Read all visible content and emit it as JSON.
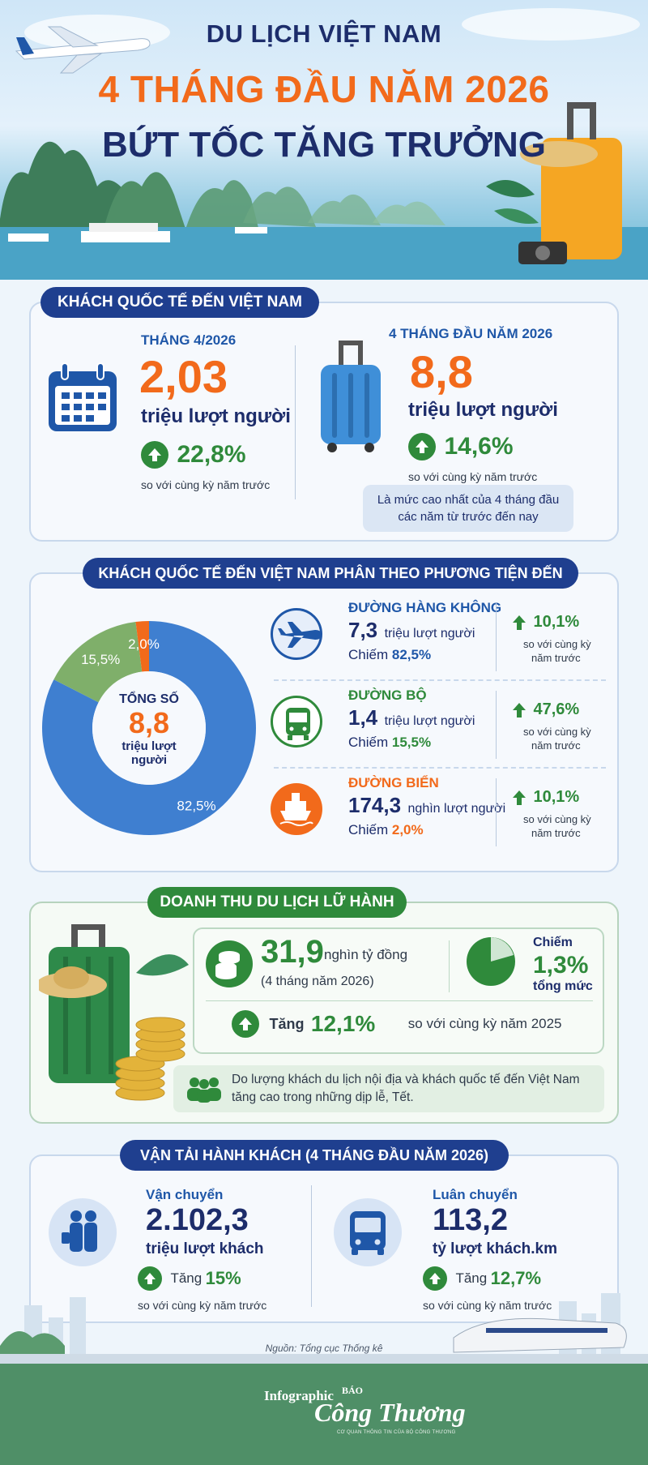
{
  "header": {
    "line1": "DU LỊCH VIỆT NAM",
    "line2": "4 THÁNG ĐẦU NĂM 2026",
    "line3": "BỨT TỐC TĂNG TRƯỞNG"
  },
  "intl": {
    "badge": "KHÁCH QUỐC TẾ ĐẾN VIỆT NAM",
    "left": {
      "period": "THÁNG 4/2026",
      "value": "2,03",
      "unit": "triệu lượt người",
      "growth": "22,8%",
      "note": "so với cùng kỳ năm trước"
    },
    "right": {
      "period": "4 THÁNG ĐẦU NĂM 2026",
      "value": "8,8",
      "unit": "triệu lượt người",
      "growth": "14,6%",
      "note": "so với cùng kỳ năm trước",
      "callout": "Là mức cao nhất của 4 tháng đầu các năm từ trước đến nay"
    }
  },
  "transport_mode": {
    "badge": "KHÁCH QUỐC TẾ ĐẾN VIỆT NAM PHÂN THEO PHƯƠNG TIỆN ĐẾN",
    "donut": {
      "total_label": "TỔNG SỐ",
      "total_value": "8,8",
      "total_unit_1": "triệu lượt",
      "total_unit_2": "người"
    },
    "modes": [
      {
        "name": "ĐƯỜNG HÀNG KHÔNG",
        "value": "7,3",
        "unit": "triệu lượt người",
        "share_label": "Chiếm",
        "share": "82,5%",
        "growth": "10,1%",
        "note_1": "so với cùng kỳ",
        "note_2": "năm trước",
        "color": "#1f57a8",
        "icon": "airplane-icon"
      },
      {
        "name": "ĐƯỜNG BỘ",
        "value": "1,4",
        "unit": "triệu lượt người",
        "share_label": "Chiếm",
        "share": "15,5%",
        "growth": "47,6%",
        "note_1": "so với cùng kỳ",
        "note_2": "năm trước",
        "color": "#2f8a3b",
        "icon": "bus-icon"
      },
      {
        "name": "ĐƯỜNG BIỂN",
        "value": "174,3",
        "unit": "nghìn lượt người",
        "share_label": "Chiếm",
        "share": "2,0%",
        "growth": "10,1%",
        "note_1": "so với cùng kỳ",
        "note_2": "năm trước",
        "color": "#f26a1b",
        "icon": "ship-icon"
      }
    ]
  },
  "chart_data": {
    "type": "pie",
    "categories": [
      "Đường hàng không",
      "Đường bộ",
      "Đường biển"
    ],
    "values": [
      82.5,
      15.5,
      2.0
    ],
    "labels": [
      "82,5%",
      "15,5%",
      "2,0%"
    ],
    "colors": [
      "#3f7fd0",
      "#7faf6a",
      "#f26a1b"
    ]
  },
  "revenue": {
    "badge": "DOANH THU DU LỊCH LỮ HÀNH",
    "value": "31,9",
    "unit": "nghìn tỷ đồng",
    "period": "(4 tháng năm 2026)",
    "share_label": "Chiếm",
    "share": "1,3%",
    "share_suffix": "tổng mức",
    "growth_label": "Tăng",
    "growth": "12,1%",
    "growth_note": "so với cùng kỳ năm 2025",
    "reason": "Do lượng khách du lịch nội địa và khách quốc tế đến Việt Nam tăng cao trong những dịp lễ, Tết."
  },
  "passenger": {
    "badge": "VẬN TẢI HÀNH KHÁCH (4 THÁNG ĐẦU NĂM 2026)",
    "left": {
      "title": "Vận chuyển",
      "value": "2.102,3",
      "unit": "triệu lượt khách",
      "growth_label": "Tăng",
      "growth": "15%",
      "note": "so với cùng kỳ năm trước"
    },
    "right": {
      "title": "Luân chuyển",
      "value": "113,2",
      "unit": "tỷ lượt khách.km",
      "growth_label": "Tăng",
      "growth": "12,7%",
      "note": "so với cùng kỳ năm trước"
    }
  },
  "source": "Nguồn: Tổng cục Thống kê",
  "footer": {
    "label": "Infographic",
    "brand_top": "BÁO",
    "brand": "Công Thương",
    "tagline": "CƠ QUAN THÔNG TIN CỦA BỘ CÔNG THƯƠNG"
  }
}
